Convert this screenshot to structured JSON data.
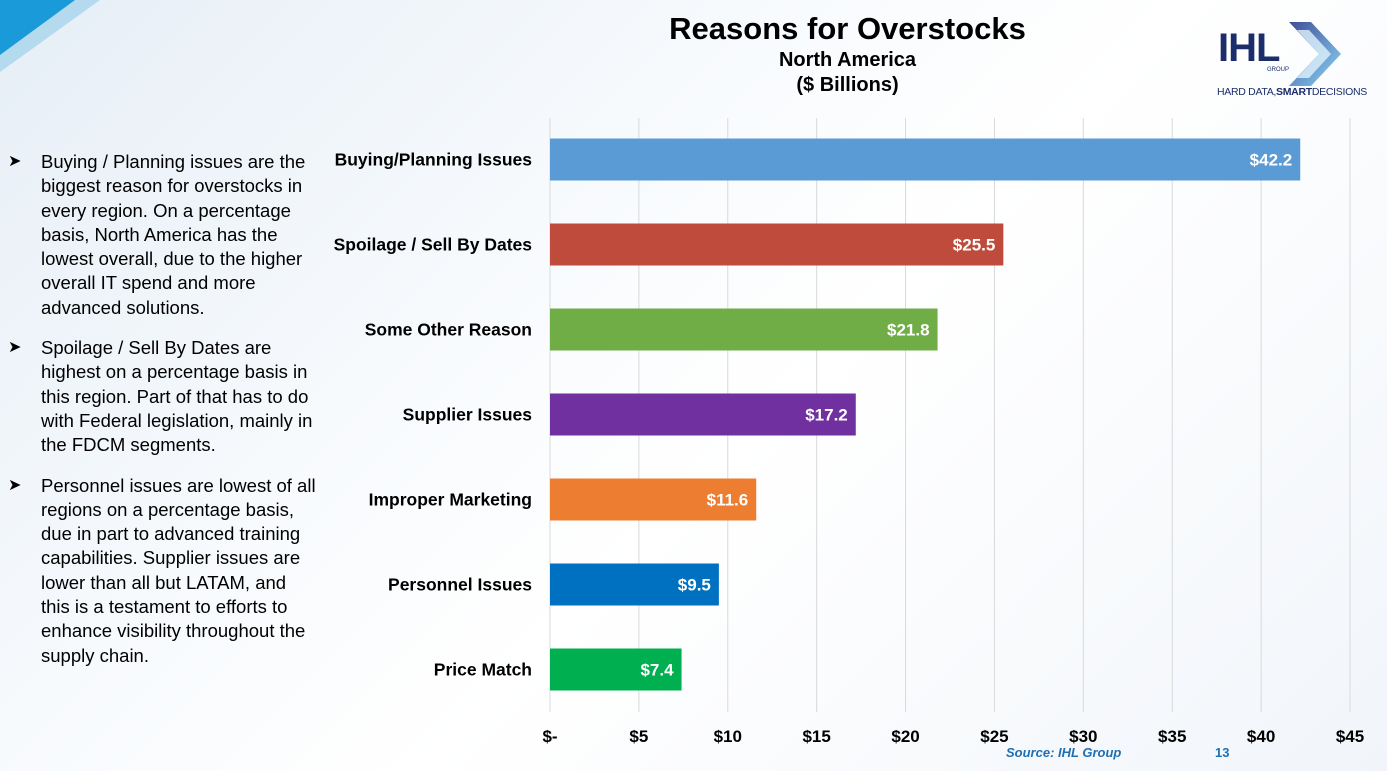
{
  "title": {
    "main": "Reasons for Overstocks",
    "region": "North America",
    "unit": "($ Billions)"
  },
  "logo": {
    "name": "IHL",
    "group": "GROUP",
    "tagline_plain": "HARD DATA,",
    "tagline_bold": "SMART",
    "tagline_end": "DECISIONS"
  },
  "bullets": [
    "Buying / Planning issues are the biggest reason for overstocks in every region. On a percentage basis, North America has the lowest overall, due to the higher overall IT spend and more advanced solutions.",
    "Spoilage / Sell By Dates are highest on a percentage basis in this region. Part of that has to do with Federal legislation, mainly in the FDCM segments.",
    "Personnel issues are lowest of all regions on a percentage basis, due in part to advanced training capabilities. Supplier issues are lower than all but LATAM, and this is a testament to efforts to enhance visibility throughout the supply chain."
  ],
  "footer": {
    "source": "Source: IHL Group",
    "page": "13"
  },
  "chart_data": {
    "type": "bar",
    "orientation": "horizontal",
    "categories": [
      "Buying/Planning Issues",
      "Spoilage / Sell By Dates",
      "Some Other Reason",
      "Supplier Issues",
      "Improper Marketing",
      "Personnel Issues",
      "Price Match"
    ],
    "values": [
      42.2,
      25.5,
      21.8,
      17.2,
      11.6,
      9.5,
      7.4
    ],
    "value_labels": [
      "$42.2",
      "$25.5",
      "$21.8",
      "$17.2",
      "$11.6",
      "$9.5",
      "$7.4"
    ],
    "colors": [
      "#5b9bd5",
      "#be4b3c",
      "#70ad47",
      "#7030a0",
      "#ed7d31",
      "#0070c0",
      "#00b050"
    ],
    "xlim": [
      0,
      45
    ],
    "x_ticks": [
      0,
      5,
      10,
      15,
      20,
      25,
      30,
      35,
      40,
      45
    ],
    "x_tick_labels": [
      "$-",
      "$5",
      "$10",
      "$15",
      "$20",
      "$25",
      "$30",
      "$35",
      "$40",
      "$45"
    ],
    "grid": true,
    "legend": "none"
  }
}
